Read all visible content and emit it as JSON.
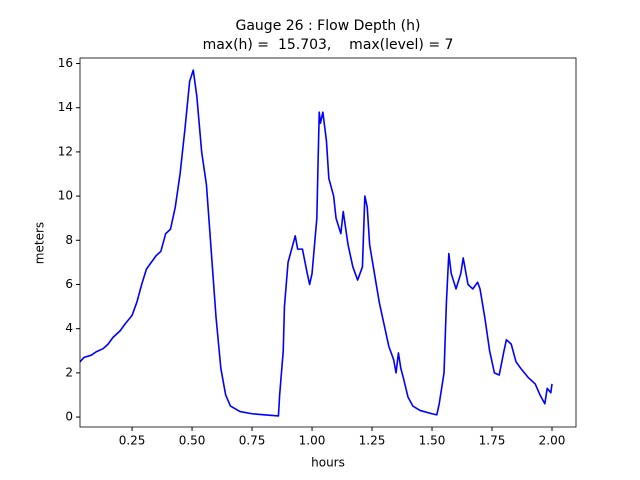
{
  "chart_data": {
    "type": "line",
    "title": "Gauge 26 : Flow Depth (h)",
    "subtitle": "max(h) =  15.703,    max(level) = 7",
    "x_label": "hours",
    "y_label": "meters",
    "x": [
      0.033,
      0.05,
      0.08,
      0.1,
      0.13,
      0.15,
      0.17,
      0.2,
      0.22,
      0.25,
      0.27,
      0.29,
      0.31,
      0.33,
      0.35,
      0.37,
      0.39,
      0.41,
      0.43,
      0.45,
      0.47,
      0.49,
      0.505,
      0.52,
      0.54,
      0.56,
      0.58,
      0.6,
      0.62,
      0.64,
      0.66,
      0.7,
      0.75,
      0.8,
      0.86,
      0.865,
      0.88,
      0.885,
      0.9,
      0.92,
      0.93,
      0.94,
      0.96,
      0.98,
      0.99,
      1.0,
      1.02,
      1.025,
      1.03,
      1.035,
      1.045,
      1.06,
      1.07,
      1.09,
      1.1,
      1.12,
      1.13,
      1.15,
      1.17,
      1.19,
      1.21,
      1.22,
      1.23,
      1.24,
      1.26,
      1.28,
      1.3,
      1.32,
      1.34,
      1.35,
      1.36,
      1.37,
      1.38,
      1.4,
      1.42,
      1.45,
      1.5,
      1.52,
      1.53,
      1.55,
      1.56,
      1.57,
      1.58,
      1.6,
      1.62,
      1.63,
      1.65,
      1.67,
      1.69,
      1.7,
      1.72,
      1.74,
      1.76,
      1.78,
      1.8,
      1.81,
      1.83,
      1.85,
      1.87,
      1.9,
      1.93,
      1.95,
      1.97,
      1.98,
      1.995,
      2.0
    ],
    "series": [
      {
        "name": "h",
        "color": "#0000ff",
        "values": [
          2.5,
          2.7,
          2.8,
          2.95,
          3.1,
          3.3,
          3.6,
          3.9,
          4.2,
          4.6,
          5.2,
          6.0,
          6.7,
          7.0,
          7.3,
          7.5,
          8.3,
          8.5,
          9.5,
          11.0,
          13.0,
          15.2,
          15.7,
          14.5,
          12.0,
          10.5,
          7.5,
          4.5,
          2.2,
          1.0,
          0.5,
          0.25,
          0.15,
          0.1,
          0.05,
          1.0,
          3.0,
          5.0,
          7.0,
          7.8,
          8.2,
          7.6,
          7.6,
          6.5,
          6.0,
          6.5,
          9.0,
          11.5,
          13.8,
          13.3,
          13.8,
          12.5,
          10.8,
          10.0,
          9.0,
          8.3,
          9.3,
          7.8,
          6.8,
          6.2,
          6.8,
          10.0,
          9.5,
          7.8,
          6.5,
          5.2,
          4.2,
          3.2,
          2.6,
          2.0,
          2.9,
          2.2,
          1.8,
          0.9,
          0.5,
          0.3,
          0.15,
          0.1,
          0.6,
          2.0,
          5.2,
          7.4,
          6.5,
          5.8,
          6.5,
          7.2,
          6.0,
          5.8,
          6.1,
          5.8,
          4.5,
          3.0,
          2.0,
          1.9,
          3.0,
          3.5,
          3.3,
          2.5,
          2.2,
          1.8,
          1.5,
          1.0,
          0.6,
          1.3,
          1.1,
          1.5
        ]
      }
    ],
    "xlim": [
      0.033,
      2.1
    ],
    "ylim": [
      -0.45,
      16.25
    ],
    "xticks": [
      0.25,
      {
        "value": 0.5,
        "label": "0.50"
      },
      0.75,
      {
        "value": 1.0,
        "label": "1.00"
      },
      1.25,
      {
        "value": 1.5,
        "label": "1.50"
      },
      1.75,
      {
        "value": 2.0,
        "label": "2.00"
      }
    ],
    "yticks": [
      0,
      2,
      4,
      6,
      8,
      10,
      12,
      14,
      16
    ],
    "grid": false
  }
}
